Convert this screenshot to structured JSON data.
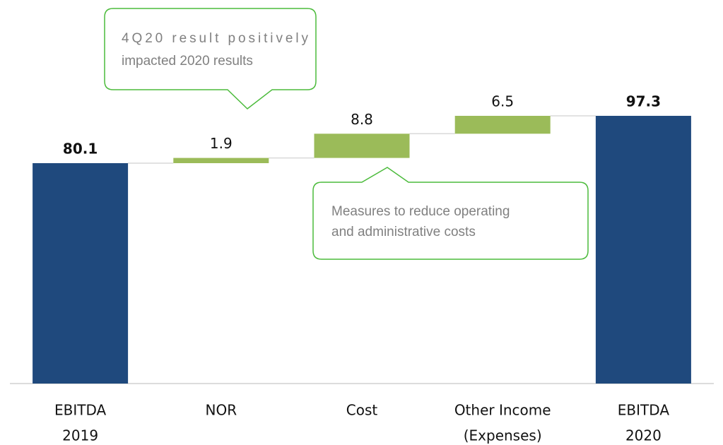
{
  "chart_data": {
    "type": "waterfall",
    "categories": [
      [
        "EBITDA",
        "2019"
      ],
      [
        "NOR"
      ],
      [
        "Cost"
      ],
      [
        "Other Income",
        "(Expenses)"
      ],
      [
        "EBITDA",
        "2020"
      ]
    ],
    "values": [
      80.1,
      1.9,
      8.8,
      6.5,
      97.3
    ],
    "bar_kinds": [
      "total",
      "delta",
      "delta",
      "delta",
      "total"
    ],
    "colors": {
      "total": "#1f497d",
      "delta": "#9bbb59"
    },
    "ylim": [
      0,
      139.4
    ],
    "annotations": [
      {
        "text": [
          "4Q20 result positively",
          "impacted 2020 results"
        ]
      },
      {
        "text": [
          "Measures to reduce operating",
          "and administrative costs"
        ]
      }
    ]
  }
}
